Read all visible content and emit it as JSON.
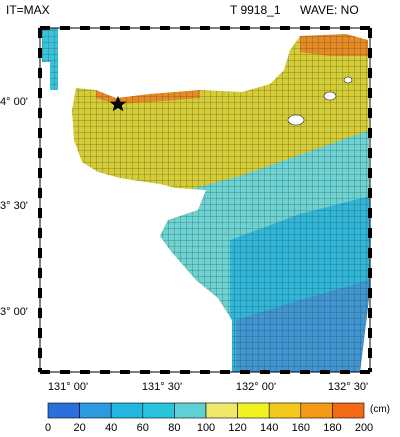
{
  "header": {
    "left": "IT=MAX",
    "case": "T 9918_1",
    "wave": "WAVE: NO"
  },
  "axes": {
    "latitude_labels": [
      "4° 00'",
      "3° 30'",
      "3° 00'"
    ],
    "longitude_labels": [
      "131° 00'",
      "131° 30'",
      "132° 00'",
      "132° 30'"
    ]
  },
  "marker": {
    "icon": "star-icon"
  },
  "colorbar": {
    "unit": "(cm)",
    "ticks": [
      "0",
      "20",
      "40",
      "60",
      "80",
      "100",
      "120",
      "140",
      "160",
      "180",
      "200"
    ],
    "colors": [
      "#2a6fdb",
      "#2a9be0",
      "#23b6e0",
      "#29c3de",
      "#5ed0d6",
      "#f0e86a",
      "#f3f221",
      "#f5c81e",
      "#f39a18",
      "#f26a12"
    ]
  }
}
